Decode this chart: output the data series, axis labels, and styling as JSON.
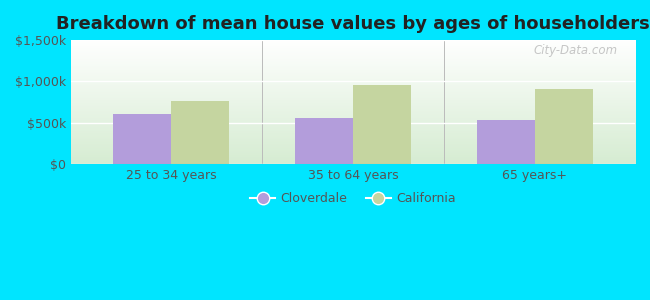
{
  "title": "Breakdown of mean house values by ages of householders",
  "categories": [
    "25 to 34 years",
    "35 to 64 years",
    "65 years+"
  ],
  "cloverdale_values": [
    610000,
    555000,
    540000
  ],
  "california_values": [
    760000,
    955000,
    905000
  ],
  "ylim": [
    0,
    1500000
  ],
  "yticks": [
    0,
    500000,
    1000000,
    1500000
  ],
  "ytick_labels": [
    "$0",
    "$500k",
    "$1,000k",
    "$1,500k"
  ],
  "cloverdale_color": "#b39ddb",
  "california_color": "#c5d5a0",
  "background_color": "#00e5ff",
  "watermark": "City-Data.com",
  "legend_cloverdale": "Cloverdale",
  "legend_california": "California",
  "title_fontsize": 13,
  "bar_width": 0.32,
  "gradient_top": "#ffffff",
  "gradient_bottom": "#d6ecd2"
}
